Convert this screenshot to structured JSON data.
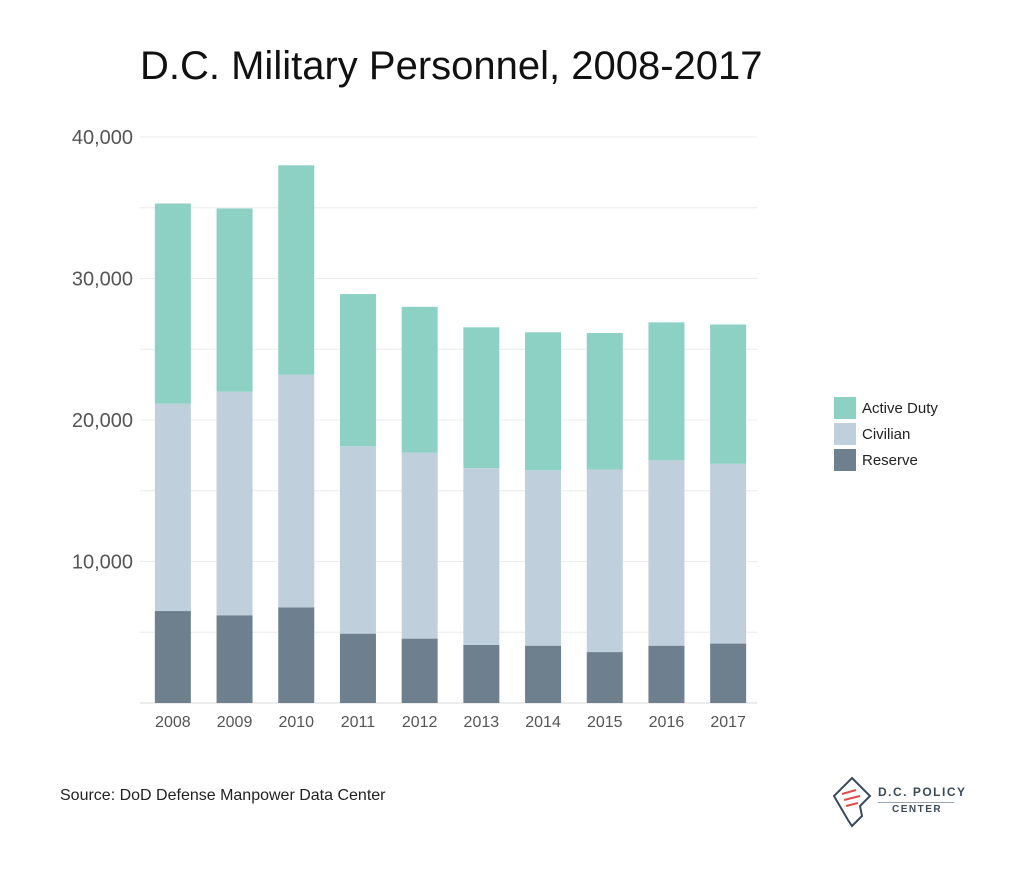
{
  "chart_data": {
    "type": "bar",
    "stacked": true,
    "title": "D.C. Military Personnel, 2008-2017",
    "categories": [
      "2008",
      "2009",
      "2010",
      "2011",
      "2012",
      "2013",
      "2014",
      "2015",
      "2016",
      "2017"
    ],
    "series": [
      {
        "name": "Reserve",
        "color": "#6e7f8e",
        "values": [
          6500,
          6200,
          6750,
          4900,
          4550,
          4100,
          4050,
          3600,
          4050,
          4200
        ]
      },
      {
        "name": "Civilian",
        "color": "#bfcfdc",
        "values": [
          14650,
          15800,
          16450,
          13250,
          13150,
          12500,
          12400,
          12900,
          13100,
          12700
        ]
      },
      {
        "name": "Active Duty",
        "color": "#8dd1c4",
        "values": [
          14150,
          12950,
          14800,
          10750,
          10300,
          9950,
          9750,
          9650,
          9750,
          9850
        ]
      }
    ],
    "legend_order": [
      "Active Duty",
      "Civilian",
      "Reserve"
    ],
    "legend_position": "right",
    "yticks": [
      "10,000",
      "20,000",
      "30,000",
      "40,000"
    ],
    "ytick_values": [
      10000,
      20000,
      30000,
      40000
    ],
    "ylim": [
      0,
      40000
    ],
    "grid": true
  },
  "source": "Source: DoD Defense Manpower Data Center",
  "logo": {
    "line1": "D.C. POLICY",
    "line2": "CENTER"
  }
}
